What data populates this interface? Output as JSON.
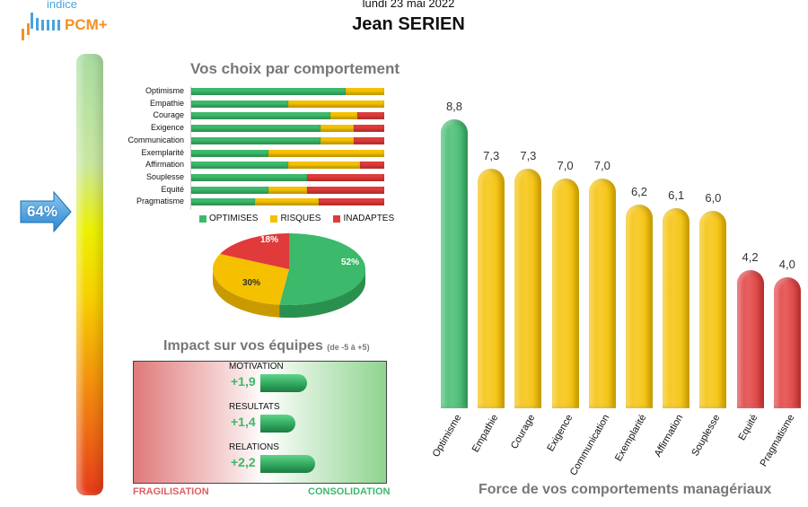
{
  "header": {
    "logo_sub": "indice",
    "logo": "PCM+",
    "date": "lundi 23 mai 2022",
    "name": "Jean SERIEN"
  },
  "gauge": {
    "value_label": "64%",
    "value": 64
  },
  "colors": {
    "optimises": "#3cb96a",
    "risques": "#f5c000",
    "inadaptes": "#e03a3a"
  },
  "chart_data": [
    {
      "type": "bar",
      "stacked": true,
      "horizontal": true,
      "title": "Vos choix par comportement",
      "categories": [
        "Optimisme",
        "Empathie",
        "Courage",
        "Exigence",
        "Communication",
        "Exemplarité",
        "Affirmation",
        "Souplesse",
        "Equité",
        "Pragmatisme"
      ],
      "series": [
        {
          "name": "OPTIMISES",
          "values": [
            0.8,
            0.5,
            0.72,
            0.67,
            0.67,
            0.4,
            0.5,
            0.6,
            0.4,
            0.33
          ]
        },
        {
          "name": "RISQUES",
          "values": [
            0.2,
            0.5,
            0.14,
            0.17,
            0.17,
            0.6,
            0.375,
            0,
            0.2,
            0.33
          ]
        },
        {
          "name": "INADAPTES",
          "values": [
            0,
            0,
            0.14,
            0.16,
            0.16,
            0,
            0.125,
            0.4,
            0.4,
            0.34
          ]
        }
      ]
    },
    {
      "type": "pie",
      "labels": [
        "OPTIMISES",
        "RISQUES",
        "INADAPTES"
      ],
      "values": [
        52,
        30,
        18
      ],
      "data_labels": [
        "52%",
        "30%",
        "18%"
      ]
    },
    {
      "type": "bar",
      "horizontal": true,
      "title": "Impact sur vos équipes",
      "subtitle": "(de -5 à +5)",
      "xlim": [
        -5,
        5
      ],
      "categories": [
        "MOTIVATION",
        "RESULTATS",
        "RELATIONS"
      ],
      "values": [
        1.9,
        1.4,
        2.2
      ],
      "data_labels": [
        "+1,9",
        "+1,4",
        "+2,2"
      ],
      "left_label": "FRAGILISATION",
      "right_label": "CONSOLIDATION"
    },
    {
      "type": "bar",
      "title": "Force de vos comportements managériaux",
      "categories": [
        "Optimisme",
        "Empathie",
        "Courage",
        "Exigence",
        "Communication",
        "Exemplarité",
        "Affirmation",
        "Souplesse",
        "Equité",
        "Pragmatisme"
      ],
      "values": [
        8.8,
        7.3,
        7.3,
        7.0,
        7.0,
        6.2,
        6.1,
        6.0,
        4.2,
        4.0
      ],
      "data_labels": [
        "8,8",
        "7,3",
        "7,3",
        "7,0",
        "7,0",
        "6,2",
        "6,1",
        "6,0",
        "4,2",
        "4,0"
      ],
      "colors": [
        "#3cb96a",
        "#f5c000",
        "#f5c000",
        "#f5c000",
        "#f5c000",
        "#f5c000",
        "#f5c000",
        "#f5c000",
        "#e03a3a",
        "#e03a3a"
      ]
    }
  ]
}
